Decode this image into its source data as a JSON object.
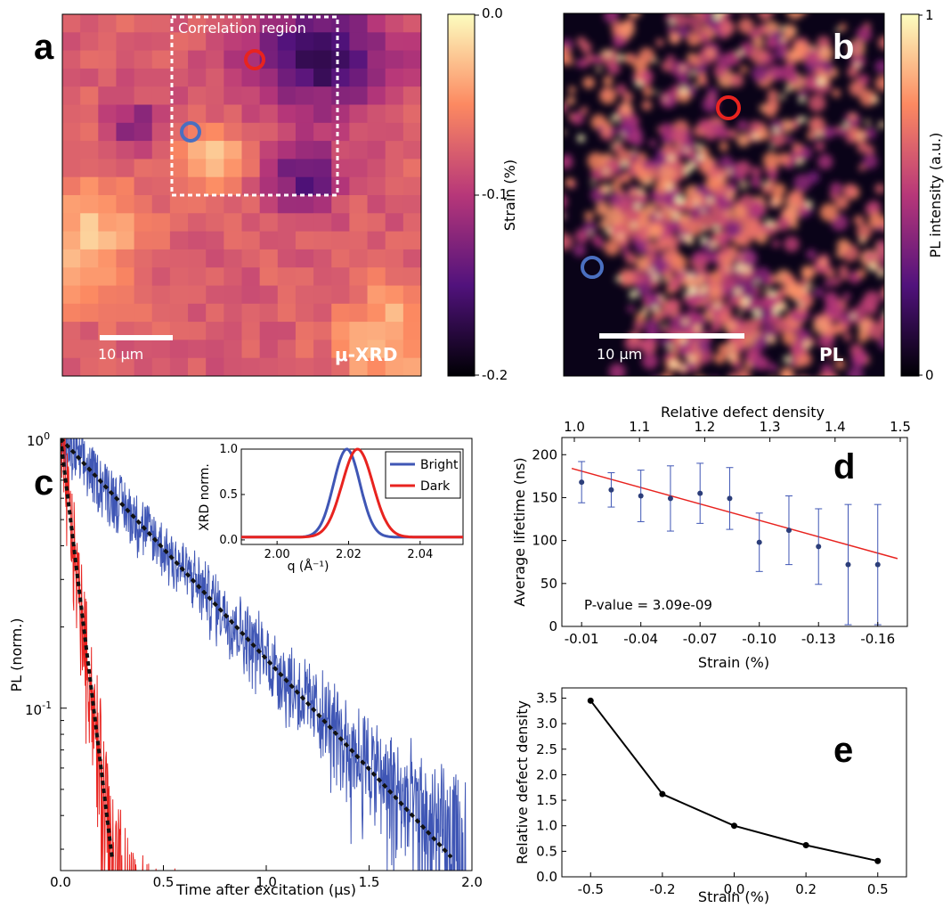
{
  "panel_labels": {
    "a": "a",
    "b": "b",
    "c": "c",
    "d": "d",
    "e": "e"
  },
  "chart_data": [
    {
      "panel": "a",
      "type": "heatmap",
      "annotation": "Correlation region",
      "watermark": "μ-XRD",
      "scalebar_label": "10 μm",
      "colorbar": {
        "label": "Strain (%)",
        "ticks": [
          "0.0",
          "-0.1",
          "-0.2"
        ],
        "min": -0.2,
        "max": 0.0
      },
      "colors": {
        "low": "#000004",
        "mid": "#721f81",
        "high": "#fcfdbf",
        "marker_red": "#e8231f",
        "marker_blue": "#4a6fc0"
      }
    },
    {
      "panel": "b",
      "type": "heatmap",
      "watermark": "PL",
      "scalebar_label": "10 μm",
      "colorbar": {
        "label": "PL intensity (a.u.)",
        "ticks": [
          "1",
          "0"
        ],
        "min": 0,
        "max": 1
      }
    },
    {
      "panel": "c",
      "type": "line",
      "xlabel": "Time after excitation (μs)",
      "ylabel": "PL (norm.)",
      "xlim": [
        0.0,
        2.0
      ],
      "ylim": [
        0.025,
        1.0
      ],
      "yscale": "log",
      "xticks": [
        "0.0",
        "0.5",
        "1.0",
        "1.5",
        "2.0"
      ],
      "ytick_base": "10",
      "ytick_exps": [
        "0",
        "-1"
      ],
      "series": [
        {
          "name": "Bright",
          "color": "#3f56b5",
          "decay_tau_us": 0.54,
          "x_end": 1.97
        },
        {
          "name": "Dark",
          "color": "#e8231f",
          "decay_tau_us": 0.07,
          "x_end": 0.6
        }
      ],
      "fits": [
        {
          "x": [
            0.0,
            1.9
          ],
          "y": [
            1.0,
            0.028
          ]
        },
        {
          "x": [
            0.0,
            0.25
          ],
          "y": [
            1.0,
            0.028
          ]
        }
      ],
      "inset": {
        "type": "line",
        "xlabel": "q (Å⁻¹)",
        "ylabel": "XRD norm.",
        "xlim": [
          1.99,
          2.052
        ],
        "ylim": [
          -0.05,
          1.0
        ],
        "xticks": [
          "2.00",
          "2.02",
          "2.04"
        ],
        "yticks": [
          "0.0",
          "0.5",
          "1.0"
        ],
        "legend": "top-right",
        "series": [
          {
            "name": "Bright",
            "color": "#3f56b5",
            "peak": 2.0195,
            "width": 0.0037
          },
          {
            "name": "Dark",
            "color": "#e8231f",
            "peak": 2.0225,
            "width": 0.0043
          }
        ]
      }
    },
    {
      "panel": "d",
      "type": "scatter",
      "xlabel": "Strain (%)",
      "ylabel": "Average lifetime (ns)",
      "x2label": "Relative defect density",
      "xlim": [
        0.0,
        -0.175
      ],
      "ylim": [
        0,
        220
      ],
      "xticks": [
        "-0.01",
        "-0.04",
        "-0.07",
        "-0.10",
        "-0.13",
        "-0.16"
      ],
      "yticks": [
        "0",
        "50",
        "100",
        "150",
        "200"
      ],
      "x2ticks": [
        "1.0",
        "1.1",
        "1.2",
        "1.3",
        "1.4",
        "1.5"
      ],
      "annotation": "P-value = 3.09e-09",
      "points": {
        "x": [
          -0.01,
          -0.025,
          -0.04,
          -0.055,
          -0.07,
          -0.085,
          -0.1,
          -0.115,
          -0.13,
          -0.145,
          -0.16
        ],
        "y": [
          168,
          159,
          152,
          149,
          155,
          149,
          98,
          112,
          93,
          72,
          72
        ],
        "err": [
          24,
          20,
          30,
          38,
          35,
          36,
          34,
          40,
          44,
          70,
          70
        ]
      },
      "fit": {
        "x": [
          -0.005,
          -0.17
        ],
        "y": [
          184,
          79
        ]
      },
      "colors": {
        "points": "#3f56b5",
        "fit": "#e8231f"
      }
    },
    {
      "panel": "e",
      "type": "line",
      "xlabel": "Strain (%)",
      "ylabel": "Relative defect density",
      "xlim": [
        -0.6,
        0.6
      ],
      "ylim": [
        0.0,
        3.7
      ],
      "xticks": [
        "-0.5",
        "-0.2",
        "0.0",
        "0.2",
        "0.5"
      ],
      "yticks": [
        "0.0",
        "0.5",
        "1.0",
        "1.5",
        "2.0",
        "2.5",
        "3.0",
        "3.5"
      ],
      "x": [
        -0.5,
        -0.25,
        0.0,
        0.25,
        0.5
      ],
      "y": [
        3.45,
        1.62,
        1.0,
        0.62,
        0.31
      ],
      "color": "#000000"
    }
  ]
}
